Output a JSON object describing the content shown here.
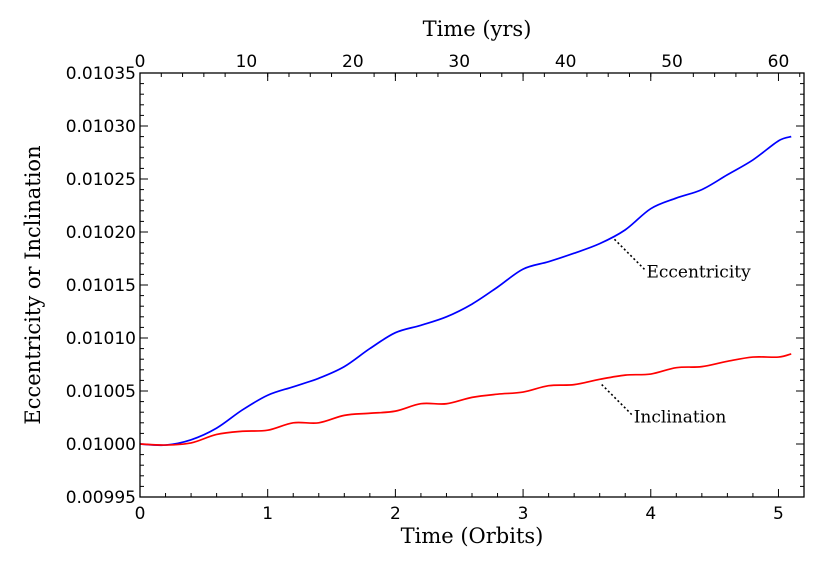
{
  "chart_data": {
    "type": "line",
    "title": "",
    "xlabel": "Time (Orbits)",
    "x2label": "Time (yrs)",
    "ylabel": "Eccentricity or Inclination",
    "xlim": [
      0,
      5.2
    ],
    "x2lim": [
      0,
      62.4
    ],
    "ylim": [
      0.00995,
      0.01035
    ],
    "grid": false,
    "x_ticks": [
      "0",
      "1",
      "2",
      "3",
      "4",
      "5"
    ],
    "x2_ticks": [
      "0",
      "10",
      "20",
      "30",
      "40",
      "50",
      "60"
    ],
    "y_ticks": [
      "0.00995",
      "0.01000",
      "0.01005",
      "0.01010",
      "0.01015",
      "0.01020",
      "0.01025",
      "0.01030",
      "0.01035"
    ],
    "series": [
      {
        "name": "Eccentricity",
        "color": "#0000ff",
        "x": [
          0.0,
          0.2,
          0.4,
          0.6,
          0.8,
          1.0,
          1.2,
          1.4,
          1.6,
          1.8,
          2.0,
          2.2,
          2.4,
          2.6,
          2.8,
          3.0,
          3.2,
          3.4,
          3.6,
          3.8,
          4.0,
          4.2,
          4.4,
          4.6,
          4.8,
          5.0,
          5.1
        ],
        "values": [
          0.01,
          0.009999,
          0.010004,
          0.010015,
          0.010032,
          0.010046,
          0.010054,
          0.010062,
          0.010073,
          0.01009,
          0.010105,
          0.010112,
          0.01012,
          0.010132,
          0.010148,
          0.010165,
          0.010172,
          0.01018,
          0.010189,
          0.010202,
          0.010222,
          0.010232,
          0.01024,
          0.010254,
          0.010268,
          0.010286,
          0.01029
        ]
      },
      {
        "name": "Inclination",
        "color": "#ff0000",
        "x": [
          0.0,
          0.2,
          0.4,
          0.6,
          0.8,
          1.0,
          1.2,
          1.4,
          1.6,
          1.8,
          2.0,
          2.2,
          2.4,
          2.6,
          2.8,
          3.0,
          3.2,
          3.4,
          3.6,
          3.8,
          4.0,
          4.2,
          4.4,
          4.6,
          4.8,
          5.0,
          5.1
        ],
        "values": [
          0.01,
          0.009999,
          0.010001,
          0.010009,
          0.010012,
          0.010013,
          0.01002,
          0.01002,
          0.010027,
          0.010029,
          0.010031,
          0.010038,
          0.010038,
          0.010044,
          0.010047,
          0.010049,
          0.010055,
          0.010056,
          0.010061,
          0.010065,
          0.010066,
          0.010072,
          0.010073,
          0.010078,
          0.010082,
          0.010082,
          0.010085
        ]
      }
    ],
    "annotations": [
      {
        "text": "Eccentricity",
        "x": 3.7,
        "y": 0.010195
      },
      {
        "text": "Inclination",
        "x": 3.6,
        "y": 0.010058
      }
    ]
  }
}
